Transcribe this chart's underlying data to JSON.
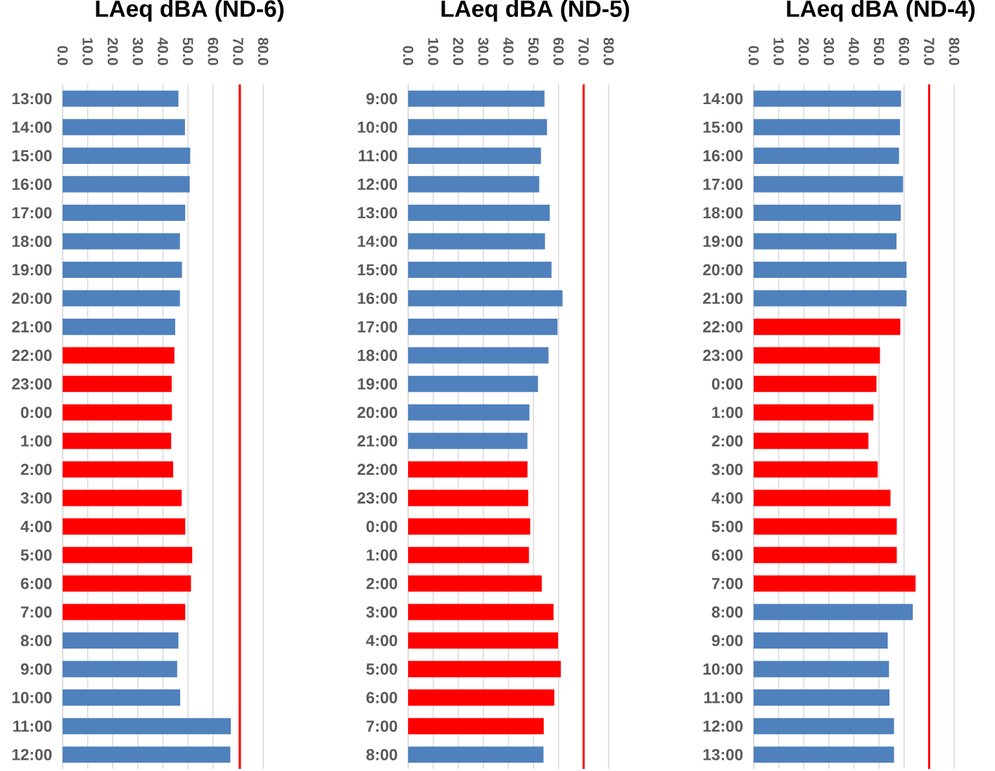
{
  "chart_data": [
    {
      "type": "bar",
      "orientation": "horizontal",
      "title": "LAeq dBA (ND-6)",
      "categories": [
        "13:00",
        "14:00",
        "15:00",
        "16:00",
        "17:00",
        "18:00",
        "19:00",
        "20:00",
        "21:00",
        "22:00",
        "23:00",
        "0:00",
        "1:00",
        "2:00",
        "3:00",
        "4:00",
        "5:00",
        "6:00",
        "7:00",
        "8:00",
        "9:00",
        "10:00",
        "11:00",
        "12:00"
      ],
      "values": [
        46.2,
        48.8,
        50.9,
        50.7,
        48.9,
        46.8,
        47.6,
        46.8,
        44.9,
        44.6,
        43.5,
        43.6,
        43.3,
        44.1,
        47.5,
        48.9,
        51.7,
        51.2,
        48.9,
        46.2,
        45.7,
        46.9,
        67.1,
        66.9
      ],
      "colors": [
        "#4f81bd",
        "#4f81bd",
        "#4f81bd",
        "#4f81bd",
        "#4f81bd",
        "#4f81bd",
        "#4f81bd",
        "#4f81bd",
        "#4f81bd",
        "#ff0000",
        "#ff0000",
        "#ff0000",
        "#ff0000",
        "#ff0000",
        "#ff0000",
        "#ff0000",
        "#ff0000",
        "#ff0000",
        "#ff0000",
        "#4f81bd",
        "#4f81bd",
        "#4f81bd",
        "#4f81bd",
        "#4f81bd"
      ],
      "xlim": [
        0,
        80
      ],
      "xticks": [
        {
          "value": 0,
          "label": "0.0"
        },
        {
          "value": 10,
          "label": "10.0"
        },
        {
          "value": 20,
          "label": "20.0"
        },
        {
          "value": 30,
          "label": "30.0"
        },
        {
          "value": 40,
          "label": "40.0"
        },
        {
          "value": 50,
          "label": "50.0"
        },
        {
          "value": 60,
          "label": "60.0"
        },
        {
          "value": 70,
          "label": "70.0"
        },
        {
          "value": 80,
          "label": "80.0"
        }
      ],
      "grid": "x",
      "ref_lines": [
        {
          "axis": "x",
          "value": 70.7,
          "color": "#ff0000"
        }
      ]
    },
    {
      "type": "bar",
      "orientation": "horizontal",
      "title": "LAeq dBA (ND-5)",
      "categories": [
        "9:00",
        "10:00",
        "11:00",
        "12:00",
        "13:00",
        "14:00",
        "15:00",
        "16:00",
        "17:00",
        "18:00",
        "19:00",
        "20:00",
        "21:00",
        "22:00",
        "23:00",
        "0:00",
        "1:00",
        "2:00",
        "3:00",
        "4:00",
        "5:00",
        "6:00",
        "7:00",
        "8:00"
      ],
      "values": [
        54.4,
        55.4,
        53.0,
        52.3,
        56.5,
        54.6,
        57.2,
        61.6,
        59.6,
        56.0,
        51.8,
        48.4,
        47.6,
        47.6,
        47.9,
        48.7,
        48.2,
        53.3,
        58.0,
        59.8,
        60.9,
        58.3,
        54.1,
        54.0
      ],
      "colors": [
        "#4f81bd",
        "#4f81bd",
        "#4f81bd",
        "#4f81bd",
        "#4f81bd",
        "#4f81bd",
        "#4f81bd",
        "#4f81bd",
        "#4f81bd",
        "#4f81bd",
        "#4f81bd",
        "#4f81bd",
        "#4f81bd",
        "#ff0000",
        "#ff0000",
        "#ff0000",
        "#ff0000",
        "#ff0000",
        "#ff0000",
        "#ff0000",
        "#ff0000",
        "#ff0000",
        "#ff0000",
        "#4f81bd"
      ],
      "xlim": [
        0,
        80
      ],
      "xticks": [
        {
          "value": 0,
          "label": "0.0"
        },
        {
          "value": 10,
          "label": "10.0"
        },
        {
          "value": 20,
          "label": "20.0"
        },
        {
          "value": 30,
          "label": "30.0"
        },
        {
          "value": 40,
          "label": "40.0"
        },
        {
          "value": 50,
          "label": "50.0"
        },
        {
          "value": 60,
          "label": "60.0"
        },
        {
          "value": 70,
          "label": "70.0"
        },
        {
          "value": 80,
          "label": "80.0"
        }
      ],
      "grid": "x",
      "ref_lines": [
        {
          "axis": "x",
          "value": 70,
          "color": "#ff0000"
        }
      ]
    },
    {
      "type": "bar",
      "orientation": "horizontal",
      "title": "LAeq dBA (ND-4)",
      "categories": [
        "14:00",
        "15:00",
        "16:00",
        "17:00",
        "18:00",
        "19:00",
        "20:00",
        "21:00",
        "22:00",
        "23:00",
        "0:00",
        "1:00",
        "2:00",
        "3:00",
        "4:00",
        "5:00",
        "6:00",
        "7:00",
        "8:00",
        "9:00",
        "10:00",
        "11:00",
        "12:00",
        "13:00"
      ],
      "values": [
        58.8,
        58.4,
        58.0,
        59.6,
        58.7,
        57.0,
        61.0,
        61.0,
        58.5,
        50.4,
        49.0,
        47.8,
        45.8,
        49.5,
        54.6,
        57.1,
        57.1,
        64.6,
        63.5,
        53.5,
        54.0,
        54.2,
        56.0,
        56.0
      ],
      "colors": [
        "#4f81bd",
        "#4f81bd",
        "#4f81bd",
        "#4f81bd",
        "#4f81bd",
        "#4f81bd",
        "#4f81bd",
        "#4f81bd",
        "#ff0000",
        "#ff0000",
        "#ff0000",
        "#ff0000",
        "#ff0000",
        "#ff0000",
        "#ff0000",
        "#ff0000",
        "#ff0000",
        "#ff0000",
        "#4f81bd",
        "#4f81bd",
        "#4f81bd",
        "#4f81bd",
        "#4f81bd",
        "#4f81bd"
      ],
      "xlim": [
        0,
        80
      ],
      "xticks": [
        {
          "value": 0,
          "label": "0.0"
        },
        {
          "value": 10,
          "label": "10.0"
        },
        {
          "value": 20,
          "label": "20.0"
        },
        {
          "value": 30,
          "label": "30.0"
        },
        {
          "value": 40,
          "label": "40.0"
        },
        {
          "value": 50,
          "label": "50.0"
        },
        {
          "value": 60,
          "label": "60.0"
        },
        {
          "value": 70,
          "label": "70.0"
        },
        {
          "value": 80,
          "label": "80.0"
        }
      ],
      "grid": "x",
      "ref_lines": [
        {
          "axis": "x",
          "value": 70,
          "color": "#ff0000"
        }
      ]
    }
  ]
}
